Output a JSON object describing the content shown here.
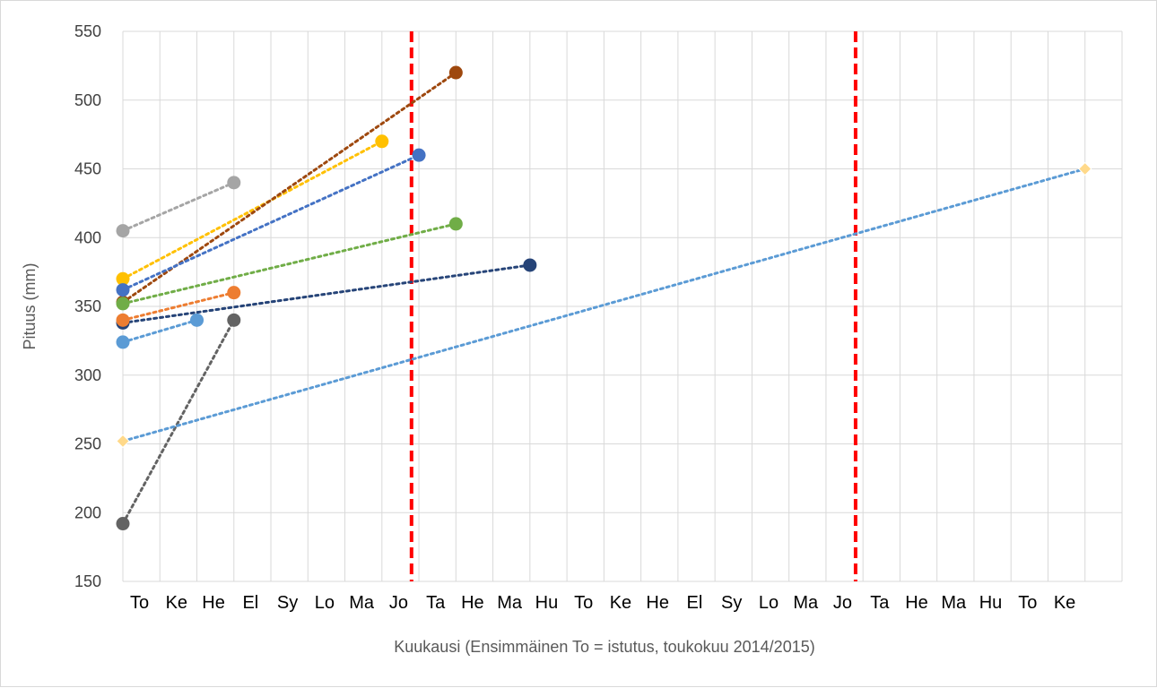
{
  "chart_data": {
    "type": "scatter",
    "title": "",
    "xlabel": "Kuukausi (Ensimmäinen To = istutus, toukokuu 2014/2015)",
    "ylabel": "Pituus (mm)",
    "ylim": [
      150,
      550
    ],
    "yticks": [
      150,
      200,
      250,
      300,
      350,
      400,
      450,
      500,
      550
    ],
    "xlim": [
      0,
      27
    ],
    "x_tick_labels": [
      "To",
      "Ke",
      "He",
      "El",
      "Sy",
      "Lo",
      "Ma",
      "Jo",
      "Ta",
      "He",
      "Ma",
      "Hu",
      "To",
      "Ke",
      "He",
      "El",
      "Sy",
      "Lo",
      "Ma",
      "Jo",
      "Ta",
      "He",
      "Ma",
      "Hu",
      "To",
      "Ke"
    ],
    "grid": true,
    "legend": "none",
    "vertical_markers": [
      {
        "x": 7.8,
        "color": "#ff0000"
      },
      {
        "x": 19.8,
        "color": "#ff0000"
      }
    ],
    "series": [
      {
        "color": "#a5a5a5",
        "marker": "circle",
        "points": [
          [
            0,
            405
          ],
          [
            3,
            440
          ]
        ]
      },
      {
        "color": "#ffc000",
        "marker": "circle",
        "points": [
          [
            0,
            370
          ],
          [
            7,
            470
          ]
        ]
      },
      {
        "color": "#9e480e",
        "marker": "circle",
        "points": [
          [
            0,
            353
          ],
          [
            9,
            520
          ]
        ]
      },
      {
        "color": "#4472c4",
        "marker": "circle",
        "points": [
          [
            0,
            362
          ],
          [
            8,
            460
          ]
        ]
      },
      {
        "color": "#70ad47",
        "marker": "circle",
        "points": [
          [
            0,
            352
          ],
          [
            9,
            410
          ]
        ]
      },
      {
        "color": "#264478",
        "marker": "circle",
        "points": [
          [
            0,
            338
          ],
          [
            11,
            380
          ]
        ]
      },
      {
        "color": "#ed7d31",
        "marker": "circle",
        "points": [
          [
            0,
            340
          ],
          [
            3,
            360
          ]
        ]
      },
      {
        "color": "#5b9bd5",
        "marker": "circle",
        "points": [
          [
            0,
            324
          ],
          [
            2,
            340
          ]
        ]
      },
      {
        "color": "#636363",
        "marker": "circle",
        "points": [
          [
            0,
            192
          ],
          [
            3,
            340
          ]
        ]
      },
      {
        "color": "#5b9bd5",
        "marker": "diamond",
        "marker_fill": "#ffd98a",
        "points": [
          [
            0,
            252
          ],
          [
            26,
            450
          ]
        ]
      }
    ]
  }
}
